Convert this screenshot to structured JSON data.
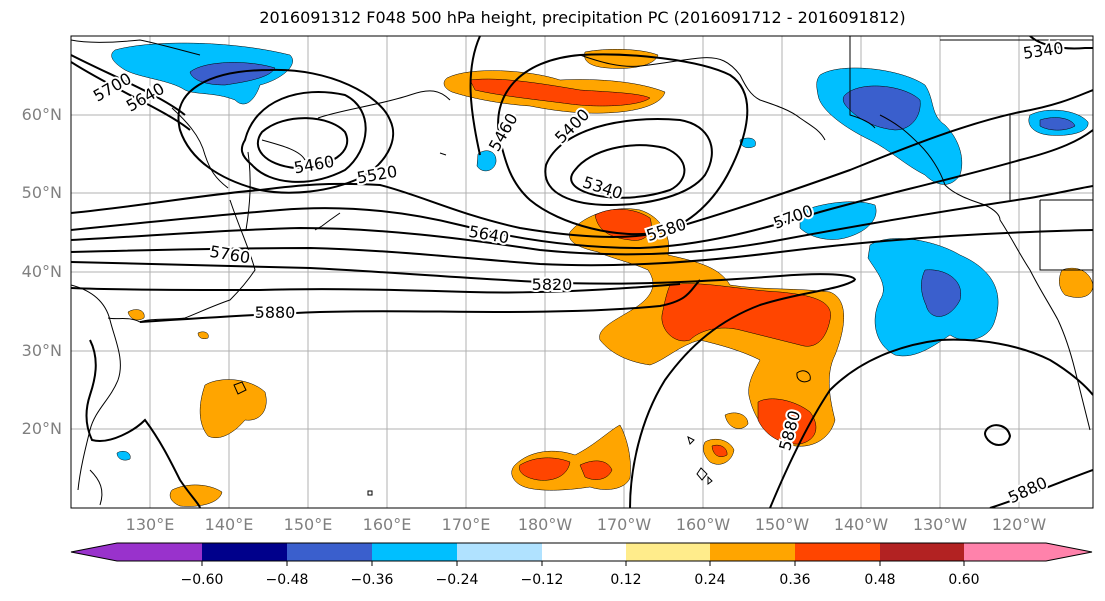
{
  "title": "2016091312 F048 500 hPa height, precipitation PC (2016091712 - 2016091812)",
  "lat_labels": [
    "60°N",
    "50°N",
    "40°N",
    "30°N",
    "20°N"
  ],
  "lon_labels": [
    "130°E",
    "140°E",
    "150°E",
    "160°E",
    "170°E",
    "180°W",
    "170°W",
    "160°W",
    "150°W",
    "140°W",
    "130°W",
    "120°W"
  ],
  "contour_labels": [
    "5700",
    "5640",
    "5460",
    "5520",
    "5460",
    "5400",
    "5340",
    "5340",
    "5580",
    "5700",
    "5640",
    "5760",
    "5820",
    "5880",
    "5880",
    "5880"
  ],
  "colorbar": {
    "ticks": [
      "−0.60",
      "−0.48",
      "−0.36",
      "−0.24",
      "−0.12",
      "0.12",
      "0.24",
      "0.36",
      "0.48",
      "0.60"
    ],
    "colors": [
      "#9932CC",
      "#00008B",
      "#3A5FCD",
      "#00BFFF",
      "#B0E2FF",
      "#FFFFFF",
      "#FFEC8B",
      "#FFA500",
      "#FF4500",
      "#B22222",
      "#FF82AB"
    ]
  }
}
